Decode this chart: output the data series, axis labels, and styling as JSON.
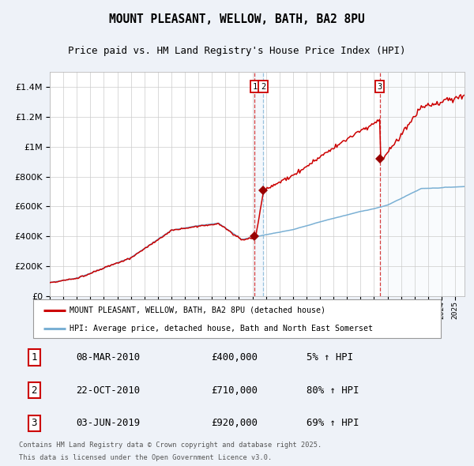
{
  "title": "MOUNT PLEASANT, WELLOW, BATH, BA2 8PU",
  "subtitle": "Price paid vs. HM Land Registry's House Price Index (HPI)",
  "title_fontsize": 10.5,
  "subtitle_fontsize": 9,
  "legend_line1": "MOUNT PLEASANT, WELLOW, BATH, BA2 8PU (detached house)",
  "legend_line2": "HPI: Average price, detached house, Bath and North East Somerset",
  "transactions": [
    {
      "label": "1",
      "date": "08-MAR-2010",
      "price": 400000,
      "price_str": "£400,000",
      "pct": "5% ↑ HPI",
      "x_year": 2010.17
    },
    {
      "label": "2",
      "date": "22-OCT-2010",
      "price": 710000,
      "price_str": "£710,000",
      "pct": "80% ↑ HPI",
      "x_year": 2010.8
    },
    {
      "label": "3",
      "date": "03-JUN-2019",
      "price": 920000,
      "price_str": "£920,000",
      "pct": "69% ↑ HPI",
      "x_year": 2019.42
    }
  ],
  "footer_line1": "Contains HM Land Registry data © Crown copyright and database right 2025.",
  "footer_line2": "This data is licensed under the Open Government Licence v3.0.",
  "ylim": [
    0,
    1500000
  ],
  "xlim_start": 1995.0,
  "xlim_end": 2025.7,
  "yticks": [
    0,
    200000,
    400000,
    600000,
    800000,
    1000000,
    1200000,
    1400000
  ],
  "red_color": "#cc0000",
  "blue_color": "#7ab0d4",
  "background_color": "#eef2f8",
  "plot_bg": "#ffffff",
  "grid_color": "#cccccc",
  "marker_color": "#990000",
  "label_box_color": "#cc0000"
}
